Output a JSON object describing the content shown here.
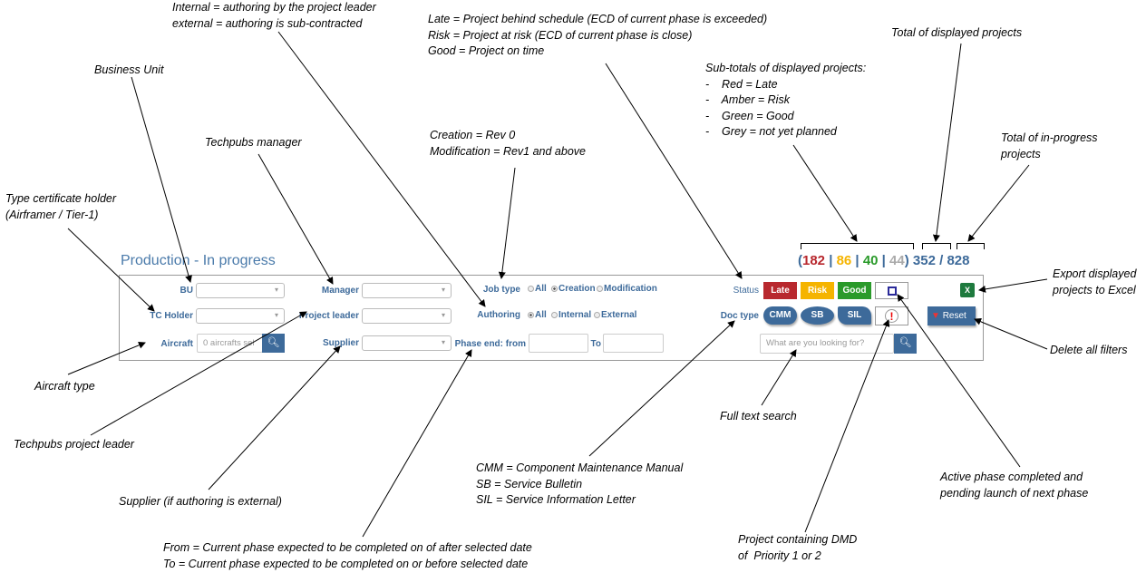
{
  "header": {
    "title": "Production - In progress"
  },
  "counts": {
    "late": "182",
    "risk": "86",
    "good": "40",
    "unplanned": "44",
    "displayed": "352",
    "in_progress": "828",
    "colors": {
      "late": "#b8282e",
      "risk": "#f5b400",
      "good": "#2a9a2a",
      "unplanned": "#aaaaaa",
      "total": "#3d6a9a"
    }
  },
  "filters": {
    "bu": "BU",
    "tc_holder": "TC Holder",
    "aircraft": "Aircraft",
    "aircraft_value": "0 aircrafts sel",
    "manager": "Manager",
    "project_leader": "Project leader",
    "supplier": "Supplier",
    "job_type": "Job type",
    "job_options": [
      "All",
      "Creation",
      "Modification"
    ],
    "job_selected": "Creation",
    "authoring": "Authoring",
    "auth_options": [
      "All",
      "Internal",
      "External"
    ],
    "auth_selected": "All",
    "phase_from": "Phase end: from",
    "phase_to": "To",
    "status": "Status",
    "status_buttons": [
      "Late",
      "Risk",
      "Good"
    ],
    "doc_type": "Doc type",
    "doc_buttons": [
      "CMM",
      "SB",
      "SIL"
    ],
    "search_placeholder": "What are you looking for?",
    "reset": "Reset"
  },
  "annotations": {
    "authoring": "Internal = authoring by the project leader\nexternal = authoring is sub-contracted",
    "status": "Late = Project behind schedule (ECD of current phase is exceeded)\nRisk = Project at risk (ECD of current phase is close)\nGood = Project on time",
    "total_displayed": "Total of displayed projects",
    "bu": "Business Unit",
    "subtotals": "Sub-totals of displayed projects:\n-    Red = Late\n-    Amber = Risk\n-    Green = Good\n-    Grey = not yet planned",
    "manager": "Techpubs manager",
    "job_type": "Creation = Rev 0\nModification = Rev1 and above",
    "in_progress": "Total of in-progress\nprojects",
    "tc_holder": "Type certificate holder\n(Airframer / Tier-1)",
    "export": "Export displayed\nprojects to Excel",
    "reset": "Delete all filters",
    "aircraft": "Aircraft type",
    "search": "Full text search",
    "project_leader": "Techpubs project leader",
    "doc_type": "CMM = Component Maintenance Manual\nSB = Service Bulletin\nSIL = Service Information Letter",
    "active_phase": "Active phase completed and\npending launch of next phase",
    "supplier": "Supplier (if authoring is external)",
    "dmd": "Project containing DMD\nof  Priority 1 or 2",
    "phase_end": "From = Current phase expected to be completed on of after selected date\nTo = Current phase expected to be completed on or before selected date"
  }
}
